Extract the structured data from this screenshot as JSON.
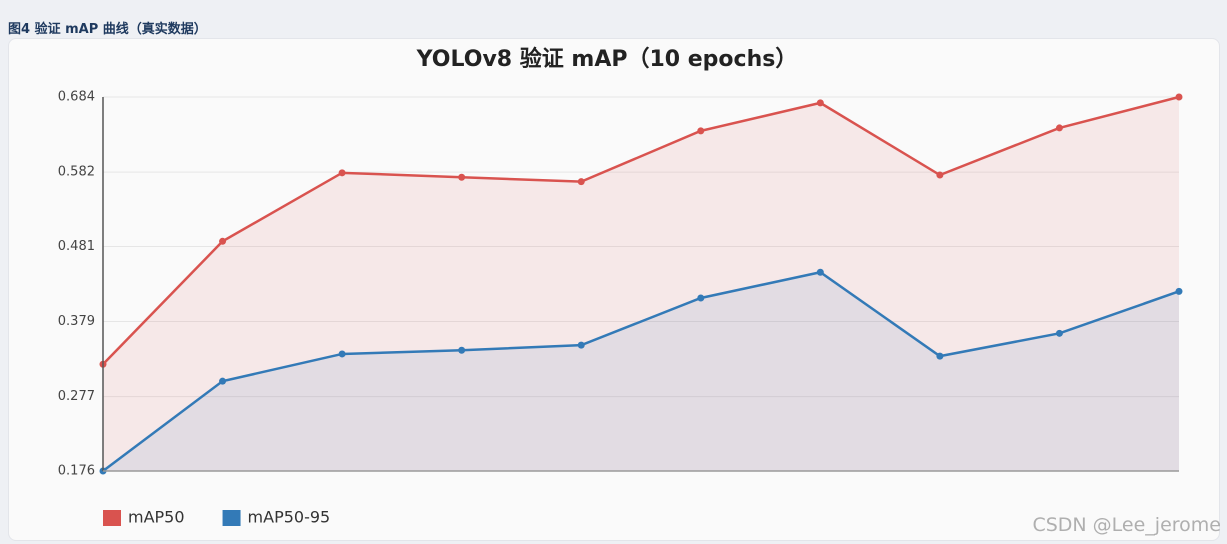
{
  "caption": "图4 验证 mAP 曲线（真实数据）",
  "watermark": "CSDN @Lee_jerome",
  "chart_data": {
    "type": "line",
    "title": "YOLOv8 验证 mAP（10 epochs）",
    "series": [
      {
        "name": "mAP50",
        "color": "#d9534f",
        "values": [
          0.321,
          0.488,
          0.581,
          0.575,
          0.569,
          0.638,
          0.676,
          0.578,
          0.642,
          0.684
        ]
      },
      {
        "name": "mAP50-95",
        "color": "#337ab7",
        "values": [
          0.176,
          0.298,
          0.335,
          0.34,
          0.347,
          0.411,
          0.446,
          0.332,
          0.363,
          0.42
        ]
      }
    ],
    "ylim": [
      0.176,
      0.684
    ],
    "yticks": [
      0.176,
      0.277,
      0.379,
      0.481,
      0.582,
      0.684
    ],
    "grid": true,
    "area": true,
    "legend": "bottom-left"
  }
}
